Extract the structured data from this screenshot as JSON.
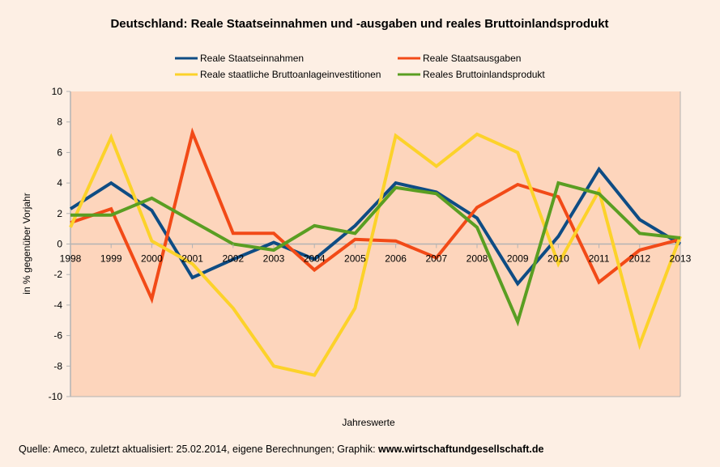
{
  "chart_data": {
    "type": "line",
    "title": "Deutschland: Reale Staatseinnahmen und -ausgaben und reales Bruttoinlandsprodukt",
    "xlabel": "Jahreswerte",
    "ylabel": "in % gegenüber Vorjahr",
    "ylim": [
      -10,
      10
    ],
    "yticks": [
      10,
      8,
      6,
      4,
      2,
      0,
      -2,
      -4,
      -6,
      -8,
      -10
    ],
    "grid": false,
    "legend_position": "top-center",
    "categories": [
      "1998",
      "1999",
      "2000",
      "2001",
      "2002",
      "2003",
      "2004",
      "2005",
      "2006",
      "2007",
      "2008",
      "2009",
      "2010",
      "2011",
      "2012",
      "2013"
    ],
    "series": [
      {
        "name": "Reale Staatseinnahmen",
        "color": "#0e4c84",
        "values": [
          2.3,
          4.0,
          2.2,
          -2.2,
          -1.0,
          0.1,
          -1.0,
          1.2,
          4.0,
          3.4,
          1.7,
          -2.6,
          0.5,
          4.9,
          1.6,
          0.0
        ]
      },
      {
        "name": "Reale Staatsausgaben",
        "color": "#f24a17",
        "values": [
          1.4,
          2.3,
          -3.6,
          7.3,
          0.7,
          0.7,
          -1.7,
          0.3,
          0.2,
          -0.9,
          2.4,
          3.9,
          3.1,
          -2.5,
          -0.4,
          0.3
        ]
      },
      {
        "name": "Reale staatliche Bruttoanlageinvestitionen",
        "color": "#fcd22a",
        "values": [
          1.1,
          7.0,
          0.2,
          -1.3,
          -4.2,
          -8.0,
          -8.6,
          -4.2,
          7.1,
          5.1,
          7.2,
          6.0,
          -1.3,
          3.5,
          -6.6,
          0.5
        ]
      },
      {
        "name": "Reales Bruttoinlandsprodukt",
        "color": "#5a9e22",
        "values": [
          1.9,
          1.9,
          3.0,
          1.5,
          0.0,
          -0.4,
          1.2,
          0.7,
          3.7,
          3.3,
          1.1,
          -5.1,
          4.0,
          3.3,
          0.7,
          0.4
        ]
      }
    ]
  },
  "footer": {
    "source": "Quelle: Ameco, zuletzt aktualisiert: 25.02.2014, eigene Berechnungen; Graphik: ",
    "website": "www.wirtschaftundgesellschaft.de"
  },
  "colors": {
    "page_background": "#fdefe4",
    "plot_background": "#fdd5bc",
    "axis": "#b3b3b3"
  }
}
